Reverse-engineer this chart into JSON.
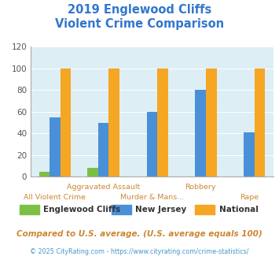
{
  "title_line1": "2019 Englewood Cliffs",
  "title_line2": "Violent Crime Comparison",
  "categories": [
    "All Violent Crime",
    "Aggravated Assault",
    "Murder & Mans...",
    "Robbery",
    "Rape"
  ],
  "series": {
    "Englewood Cliffs": [
      5,
      8,
      0,
      0,
      0
    ],
    "New Jersey": [
      55,
      50,
      60,
      80,
      41
    ],
    "National": [
      100,
      100,
      100,
      100,
      100
    ]
  },
  "colors": {
    "Englewood Cliffs": "#7bc043",
    "New Jersey": "#4a90d9",
    "National": "#f5a623"
  },
  "ylim": [
    0,
    120
  ],
  "yticks": [
    0,
    20,
    40,
    60,
    80,
    100,
    120
  ],
  "plot_bg": "#ddeef5",
  "title_color": "#3377cc",
  "xlabel_color": "#cc8833",
  "legend_text_color": "#333333",
  "footnote1": "Compared to U.S. average. (U.S. average equals 100)",
  "footnote2": "© 2025 CityRating.com - https://www.cityrating.com/crime-statistics/",
  "footnote1_color": "#cc8833",
  "footnote2_color": "#4499cc",
  "row1_labels": [
    "",
    "Aggravated Assault",
    "",
    "Robbery",
    ""
  ],
  "row2_labels": [
    "All Violent Crime",
    "",
    "Murder & Mans...",
    "",
    "Rape"
  ]
}
